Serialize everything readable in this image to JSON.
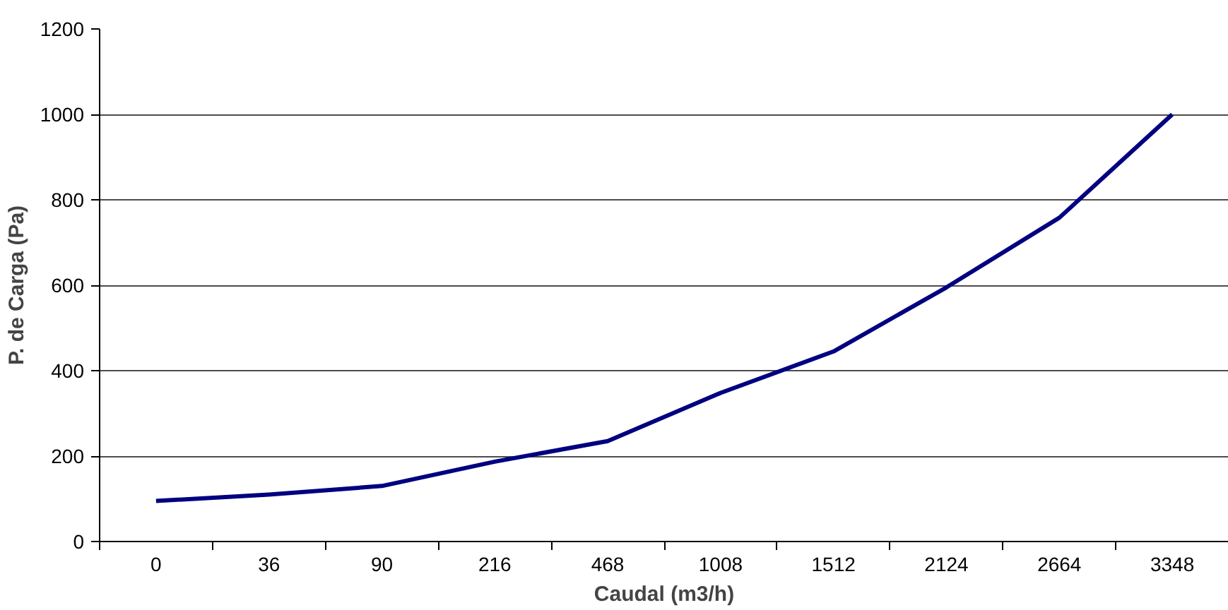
{
  "chart_data": {
    "type": "line",
    "xlabel": "Caudal (m3/h)",
    "ylabel": "P. de Carga (Pa)",
    "categories": [
      "0",
      "36",
      "90",
      "216",
      "468",
      "1008",
      "1512",
      "2124",
      "2664",
      "3348"
    ],
    "series": [
      {
        "color": "#000080",
        "values": [
          95,
          110,
          130,
          187,
          235,
          348,
          445,
          595,
          758,
          1000
        ]
      }
    ],
    "ylim": [
      0,
      1200
    ],
    "yticks": [
      0,
      200,
      400,
      600,
      800,
      1000,
      1200
    ],
    "grid": "y",
    "marker": "none",
    "line_style": "solid"
  }
}
